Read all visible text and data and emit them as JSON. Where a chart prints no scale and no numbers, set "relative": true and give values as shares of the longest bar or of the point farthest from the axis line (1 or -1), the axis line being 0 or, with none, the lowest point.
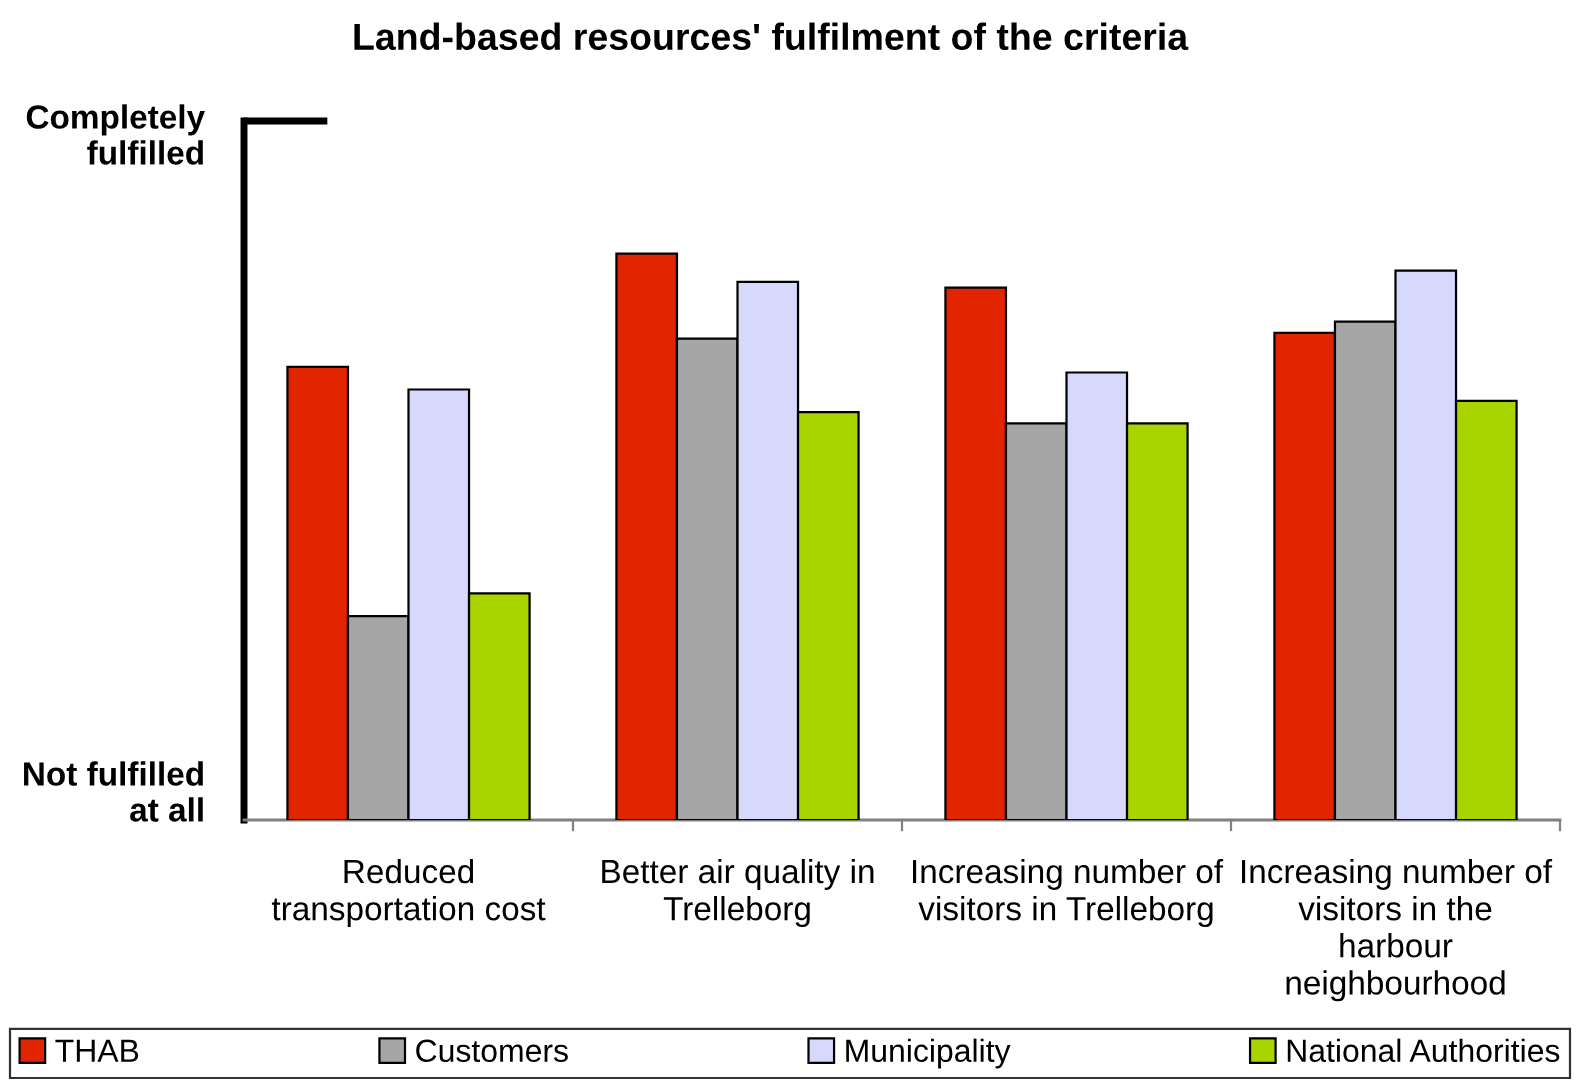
{
  "chart_data": {
    "type": "bar",
    "title": "Land-based resources' fulfilment of the criteria",
    "categories": [
      "Reduced\ntransportation cost",
      "Better air quality in\nTrelleborg",
      "Increasing number of\nvisitors in Trelleborg",
      "Increasing number of\nvisitors in the\nharbour\nneighbourhood"
    ],
    "series": [
      {
        "name": "THAB",
        "color": "#e32400",
        "values": [
          0.8,
          1,
          0.94,
          0.86
        ]
      },
      {
        "name": "Customers",
        "color": "#a6a6a6",
        "values": [
          0.36,
          0.85,
          0.7,
          0.88
        ]
      },
      {
        "name": "Municipality",
        "color": "#d6d8fc",
        "values": [
          0.76,
          0.95,
          0.79,
          0.97
        ]
      },
      {
        "name": "National Authorities",
        "color": "#a8d400",
        "values": [
          0.4,
          0.72,
          0.7,
          0.74
        ]
      }
    ],
    "relative": true,
    "annotations": [
      "Completely\nfulfilled",
      "Not fulfilled\nat all"
    ],
    "legend": "bottom"
  }
}
